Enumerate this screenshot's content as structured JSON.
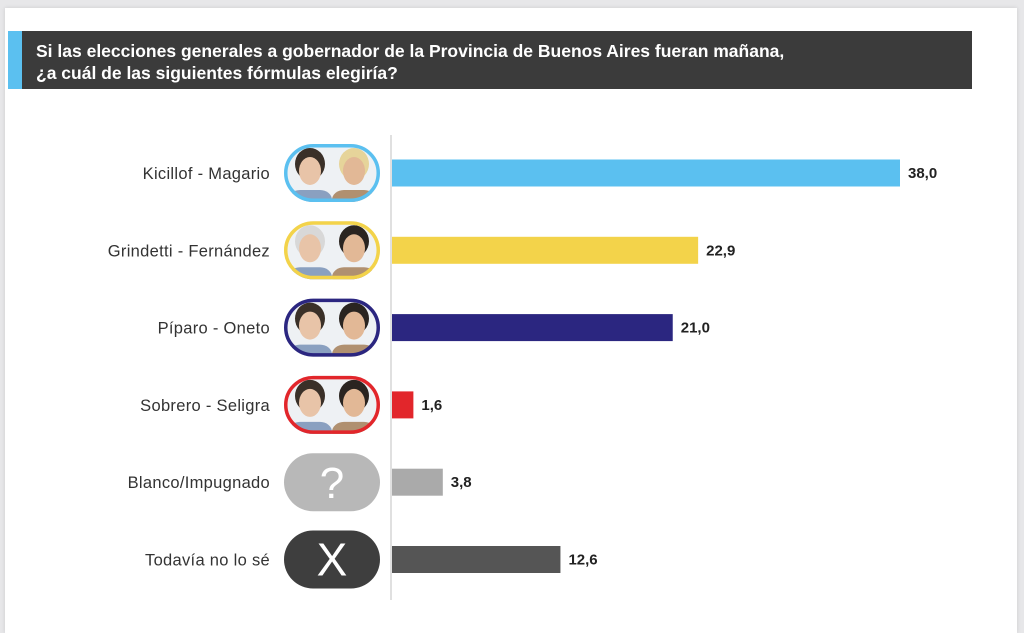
{
  "title": "Si las elecciones generales a gobernador de la Provincia de Buenos Aires fueran mañana,\n¿a cuál de las siguientes fórmulas elegiría?",
  "colors": {
    "title_background": "#3b3b3b",
    "title_accent": "#5bc0f0"
  },
  "chart_data": {
    "type": "bar",
    "orientation": "horizontal",
    "categories": [
      "Kicillof - Magario",
      "Grindetti - Fernández",
      "Píparo - Oneto",
      "Sobrero - Seligra",
      "Blanco/Impugnado",
      "Todavía no lo sé"
    ],
    "values": [
      38.0,
      22.9,
      21.0,
      1.6,
      3.8,
      12.6
    ],
    "value_labels": [
      "38,0",
      "22,9",
      "21,0",
      "1,6",
      "3,8",
      "12,6"
    ],
    "bar_colors": [
      "#5bc0f0",
      "#f3d34a",
      "#2b2680",
      "#e2262b",
      "#aaaaaa",
      "#555555"
    ],
    "icons": [
      "candidate-photos",
      "candidate-photos",
      "candidate-photos",
      "candidate-photos",
      "question-mark-icon",
      "x-mark-icon"
    ],
    "icon_borders": [
      "#5bc0f0",
      "#f3d34a",
      "#2b2680",
      "#e2262b",
      "#b8b8b8",
      "#3e3e3e"
    ],
    "icon_symbols": [
      "",
      "",
      "",
      "",
      "?",
      "X"
    ],
    "xlim": [
      0,
      38
    ],
    "grid": false,
    "legend": "none"
  }
}
